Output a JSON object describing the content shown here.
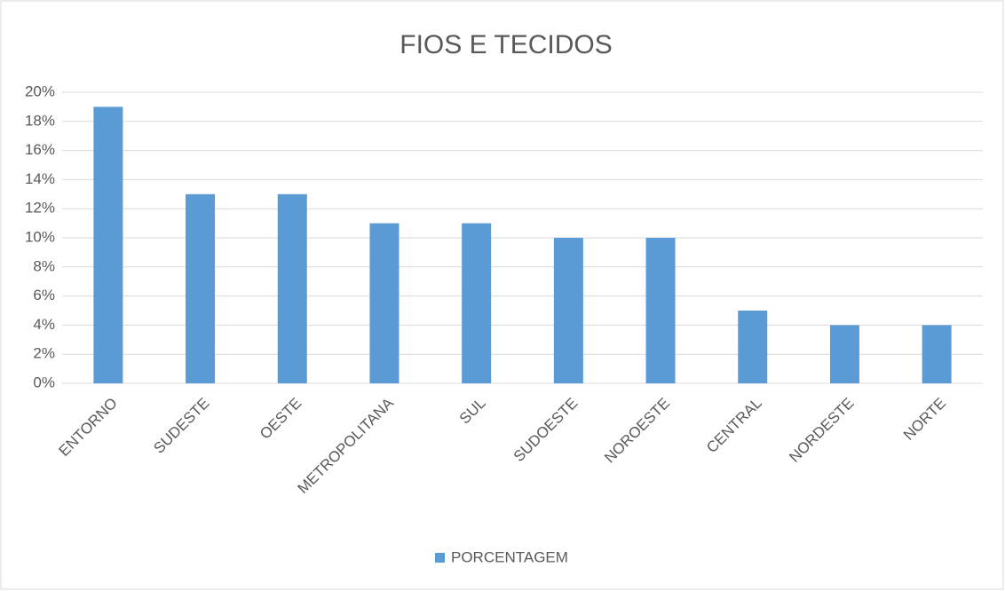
{
  "chart_data": {
    "type": "bar",
    "title": "FIOS E TECIDOS",
    "categories": [
      "ENTORNO",
      "SUDESTE",
      "OESTE",
      "METROPOLITANA",
      "SUL",
      "SUDOESTE",
      "NOROESTE",
      "CENTRAL",
      "NORDESTE",
      "NORTE"
    ],
    "series": [
      {
        "name": "PORCENTAGEM",
        "color": "#5b9bd5",
        "values": [
          19,
          13,
          13,
          11,
          11,
          10,
          10,
          5,
          4,
          4
        ]
      }
    ],
    "ylim": [
      0,
      20
    ],
    "yticks": [
      {
        "value": 0,
        "label": "0%"
      },
      {
        "value": 2,
        "label": "2%"
      },
      {
        "value": 4,
        "label": "4%"
      },
      {
        "value": 6,
        "label": "6%"
      },
      {
        "value": 8,
        "label": "8%"
      },
      {
        "value": 10,
        "label": "10%"
      },
      {
        "value": 12,
        "label": "12%"
      },
      {
        "value": 14,
        "label": "14%"
      },
      {
        "value": 16,
        "label": "16%"
      },
      {
        "value": 18,
        "label": "18%"
      },
      {
        "value": 20,
        "label": "20%"
      }
    ],
    "grid": true,
    "legend": "bottom"
  }
}
